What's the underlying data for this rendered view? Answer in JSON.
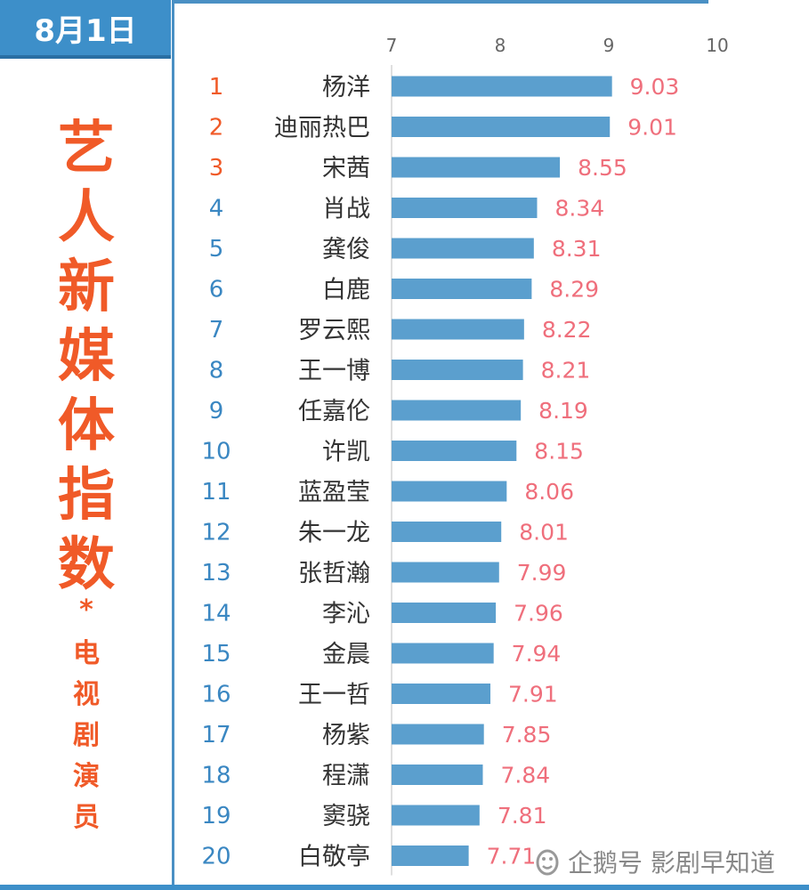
{
  "header": {
    "date": "8月1日"
  },
  "title_chars": [
    "艺",
    "人",
    "新",
    "媒",
    "体",
    "指",
    "数"
  ],
  "star": "*",
  "subtitle_chars": [
    "电",
    "视",
    "剧",
    "演",
    "员"
  ],
  "watermark": {
    "text": "企鹅号 影剧早知道",
    "icon": "penguin-logo-icon"
  },
  "colors": {
    "bar": "#5b9fce",
    "value_label": "#ef6f7c",
    "rank_top3": "#f05a28",
    "rank_rest": "#3a87c2",
    "title": "#f05a28"
  },
  "chart_data": {
    "type": "bar",
    "orientation": "horizontal",
    "xlim": [
      7,
      10
    ],
    "xticks": [
      "7",
      "8",
      "9",
      "10"
    ],
    "ranks": [
      "1",
      "2",
      "3",
      "4",
      "5",
      "6",
      "7",
      "8",
      "9",
      "10",
      "11",
      "12",
      "13",
      "14",
      "15",
      "16",
      "17",
      "18",
      "19",
      "20"
    ],
    "categories": [
      "杨洋",
      "迪丽热巴",
      "宋茜",
      "肖战",
      "龚俊",
      "白鹿",
      "罗云熙",
      "王一博",
      "任嘉伦",
      "许凯",
      "蓝盈莹",
      "朱一龙",
      "张哲瀚",
      "李沁",
      "金晨",
      "王一哲",
      "杨紫",
      "程潇",
      "窦骁",
      "白敬亭"
    ],
    "values": [
      9.03,
      9.01,
      8.55,
      8.34,
      8.31,
      8.29,
      8.22,
      8.21,
      8.19,
      8.15,
      8.06,
      8.01,
      7.99,
      7.96,
      7.94,
      7.91,
      7.85,
      7.84,
      7.81,
      7.71
    ],
    "value_labels": [
      "9.03",
      "9.01",
      "8.55",
      "8.34",
      "8.31",
      "8.29",
      "8.22",
      "8.21",
      "8.19",
      "8.15",
      "8.06",
      "8.01",
      "7.99",
      "7.96",
      "7.94",
      "7.91",
      "7.85",
      "7.84",
      "7.81",
      "7.71"
    ]
  }
}
